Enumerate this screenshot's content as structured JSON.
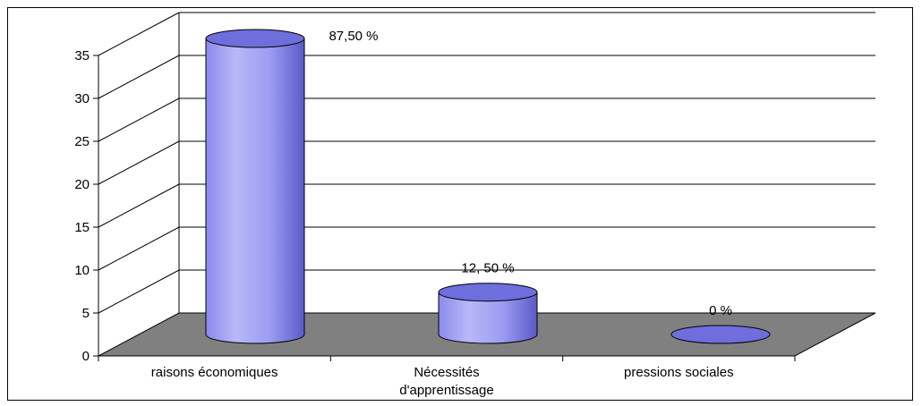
{
  "chart_data": {
    "type": "bar",
    "style": "3d-cylinder",
    "categories": [
      "raisons économiques",
      "Nécessités\nd'apprentissage",
      "pressions sociales"
    ],
    "values": [
      35,
      5,
      0
    ],
    "data_labels": [
      "87,50 %",
      "12, 50 %",
      "0 %"
    ],
    "title": "",
    "xlabel": "",
    "ylabel": "",
    "ylim": [
      0,
      35
    ],
    "yticks": [
      0,
      5,
      10,
      15,
      20,
      25,
      30,
      35
    ],
    "ytick_labels": [
      "0",
      "5",
      "10",
      "15",
      "20",
      "25",
      "30",
      "35"
    ],
    "grid": true,
    "legend": "none",
    "colors": {
      "bar_light": "#B8B8F8",
      "bar_mid": "#9999FF",
      "bar_dark": "#5A5AC8",
      "bar_top": "#6E6EDC",
      "floor": "#808080",
      "grid": "#000000"
    }
  }
}
